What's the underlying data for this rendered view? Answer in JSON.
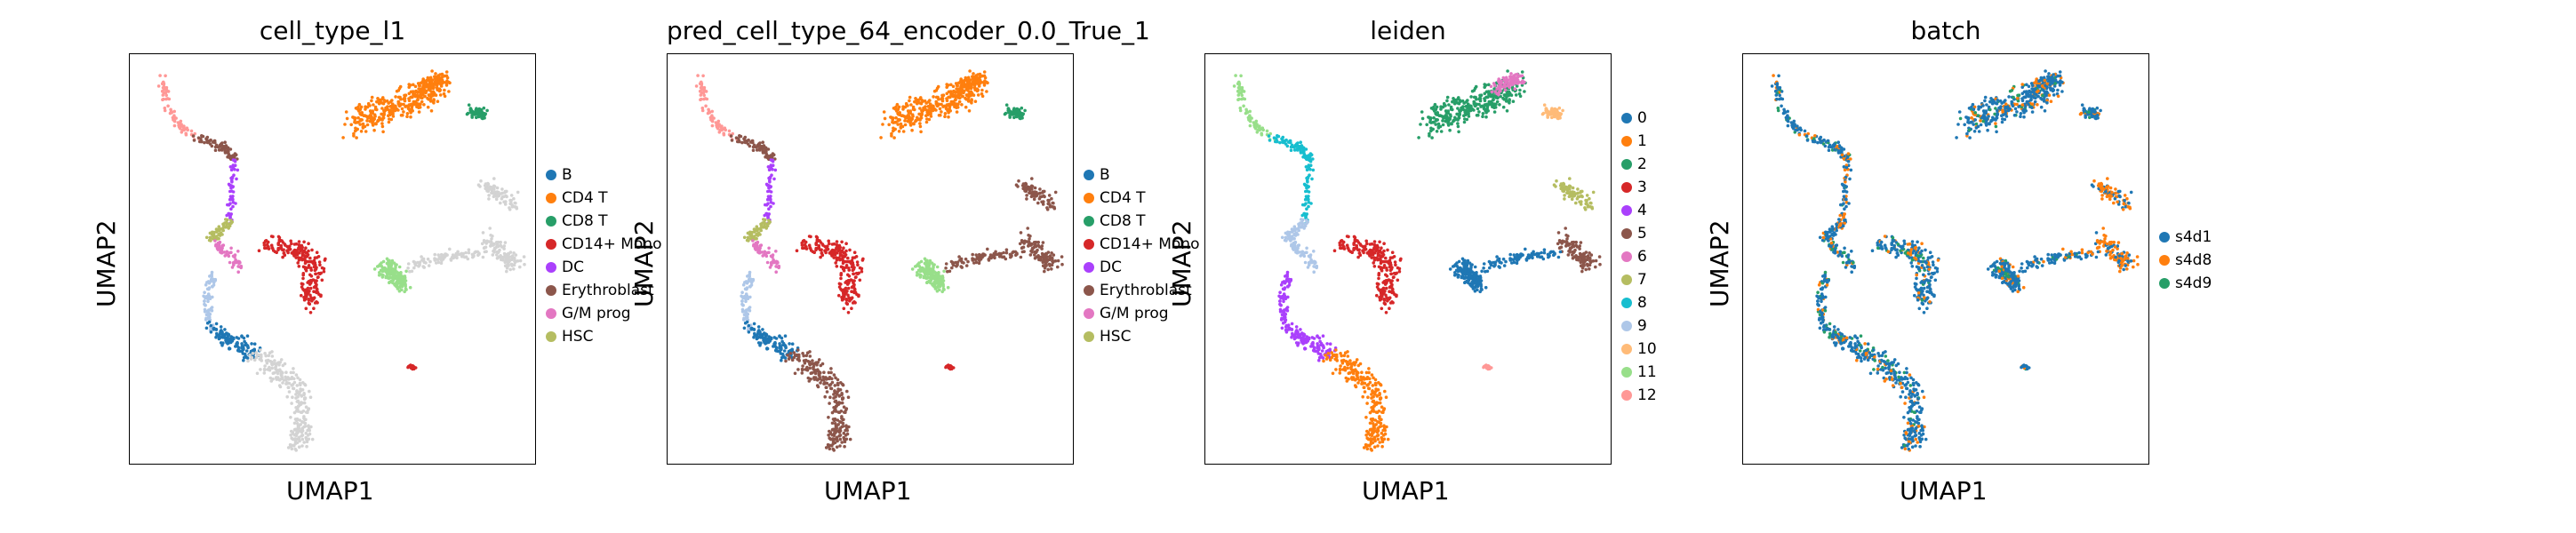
{
  "colors": {
    "tab10": [
      "#1f77b4",
      "#ff7f0e",
      "#279e68",
      "#d62728",
      "#aa40fc",
      "#8c564b",
      "#e377c2",
      "#b5bd61",
      "#17becf",
      "#aec7e8",
      "#ffbb78",
      "#98df8a",
      "#ff9896"
    ],
    "na": "#d3d3d3"
  },
  "chart_data": [
    {
      "type": "scatter",
      "title": "cell_type_l1",
      "xlabel": "UMAP1",
      "ylabel": "UMAP2",
      "legend_placement": "right",
      "legend": [
        "B",
        "CD4 T",
        "CD8 T",
        "CD14+ Mono",
        "DC",
        "Erythroblast",
        "G/M prog",
        "HSC"
      ],
      "grid": false
    },
    {
      "type": "scatter",
      "title": "pred_cell_type_64_encoder_0.0_True_1",
      "xlabel": "UMAP1",
      "ylabel": "UMAP2",
      "legend_placement": "right",
      "legend": [
        "B",
        "CD4 T",
        "CD8 T",
        "CD14+ Mono",
        "DC",
        "Erythroblast",
        "G/M prog",
        "HSC"
      ],
      "grid": false
    },
    {
      "type": "scatter",
      "title": "leiden",
      "xlabel": "UMAP1",
      "ylabel": "UMAP2",
      "legend_placement": "right",
      "legend": [
        "0",
        "1",
        "2",
        "3",
        "4",
        "5",
        "6",
        "7",
        "8",
        "9",
        "10",
        "11",
        "12"
      ],
      "grid": false
    },
    {
      "type": "scatter",
      "title": "batch",
      "xlabel": "UMAP1",
      "ylabel": "UMAP2",
      "legend_placement": "right",
      "legend": [
        "s4d1",
        "s4d8",
        "s4d9"
      ],
      "grid": false
    }
  ]
}
